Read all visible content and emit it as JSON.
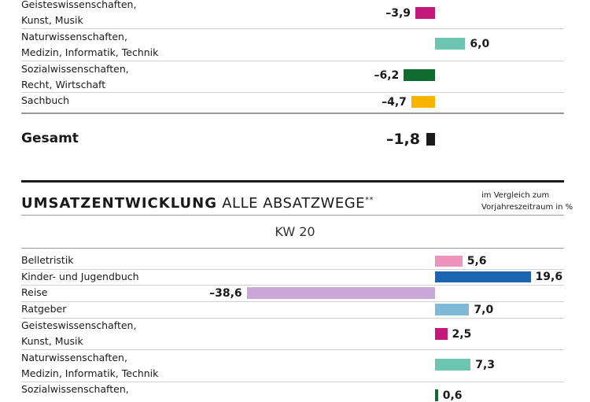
{
  "top_section": {
    "categories": [
      "Geisteswissenschaften,\nKunst, Musik",
      "Naturwissenschaften,\nMedizin, Informatik, Technik",
      "Sozialwissenschaften,\nRecht, Wirtschaft",
      "Sachbuch"
    ],
    "value_labels": [
      "–3,9",
      "6,0",
      "–6,2",
      "–4,7"
    ],
    "total_label": "Gesamt",
    "total_value_label": "–1,8"
  },
  "bottom_section": {
    "title_bold": "UMSATZENTWICKLUNG",
    "title_light": "ALLE ABSATZWEGE",
    "title_suffix": "**",
    "note_line1": "im Vergleich zum",
    "note_line2": "Vorjahreszeitraum in %",
    "period": "KW 20",
    "categories": [
      "Belletristik",
      "Kinder- und Jugendbuch",
      "Reise",
      "Ratgeber",
      "Geisteswissenschaften,\nKunst, Musik",
      "Naturwissenschaften,\nMedizin, Informatik, Technik",
      "Sozialwissenschaften,"
    ],
    "value_labels": [
      "5,6",
      "19,6",
      "–38,6",
      "7,0",
      "2,5",
      "7,3",
      "0,6"
    ]
  },
  "colors": {
    "geistes": "#c2197a",
    "natur": "#6bc5b0",
    "sozial": "#0f6b2f",
    "sachbuch": "#f7b500",
    "gesamt": "#1a1a1a",
    "belletristik": "#ee93bb",
    "kinder": "#1e64b0",
    "reise": "#c9a8d8",
    "ratgeber": "#7fb9d8"
  },
  "chart_data": [
    {
      "type": "bar",
      "orientation": "horizontal",
      "categories": [
        "Geisteswissenschaften, Kunst, Musik",
        "Naturwissenschaften, Medizin, Informatik, Technik",
        "Sozialwissenschaften, Recht, Wirtschaft",
        "Sachbuch",
        "Gesamt"
      ],
      "values": [
        -3.9,
        6.0,
        -6.2,
        -4.7,
        -1.8
      ]
    },
    {
      "type": "bar",
      "orientation": "horizontal",
      "title": "UMSATZENTWICKLUNG ALLE ABSATZWEGE**",
      "subtitle": "KW 20",
      "ylabel": "im Vergleich zum Vorjahreszeitraum in %",
      "categories": [
        "Belletristik",
        "Kinder- und Jugendbuch",
        "Reise",
        "Ratgeber",
        "Geisteswissenschaften, Kunst, Musik",
        "Naturwissenschaften, Medizin, Informatik, Technik",
        "Sozialwissenschaften,"
      ],
      "values": [
        5.6,
        19.6,
        -38.6,
        7.0,
        2.5,
        7.3,
        0.6
      ]
    }
  ]
}
